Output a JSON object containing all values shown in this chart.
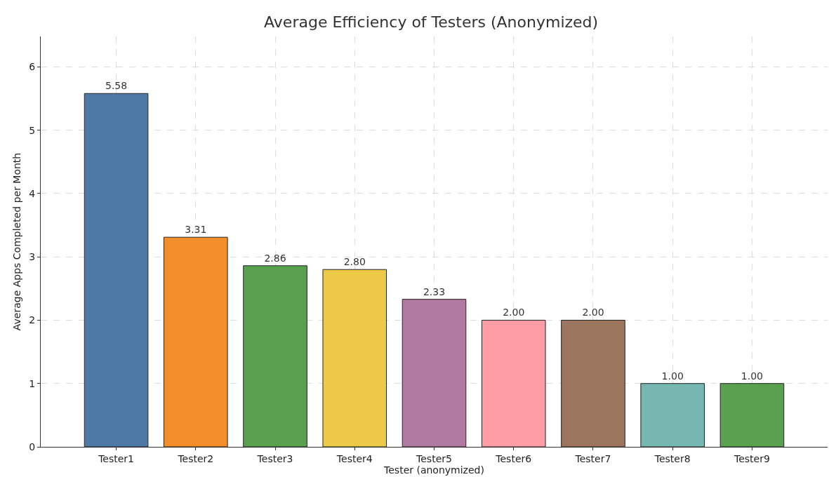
{
  "chart_data": {
    "type": "bar",
    "title": "Average Efficiency of Testers (Anonymized)",
    "xlabel": "Tester (anonymized)",
    "ylabel": "Average Apps Completed per Month",
    "categories": [
      "Tester1",
      "Tester2",
      "Tester3",
      "Tester4",
      "Tester5",
      "Tester6",
      "Tester7",
      "Tester8",
      "Tester9"
    ],
    "values": [
      5.58,
      3.31,
      2.86,
      2.8,
      2.33,
      2.0,
      2.0,
      1.0,
      1.0
    ],
    "value_labels": [
      "5.58",
      "3.31",
      "2.86",
      "2.80",
      "2.33",
      "2.00",
      "2.00",
      "1.00",
      "1.00"
    ],
    "colors": [
      "#4e79a7",
      "#f28e2b",
      "#59a14f",
      "#edc948",
      "#b07aa1",
      "#ff9da7",
      "#9c755f",
      "#76b7b2",
      "#59a14f"
    ],
    "ylim": [
      0,
      6.48
    ],
    "yticks": [
      0,
      1,
      2,
      3,
      4,
      5,
      6
    ],
    "grid": true
  }
}
